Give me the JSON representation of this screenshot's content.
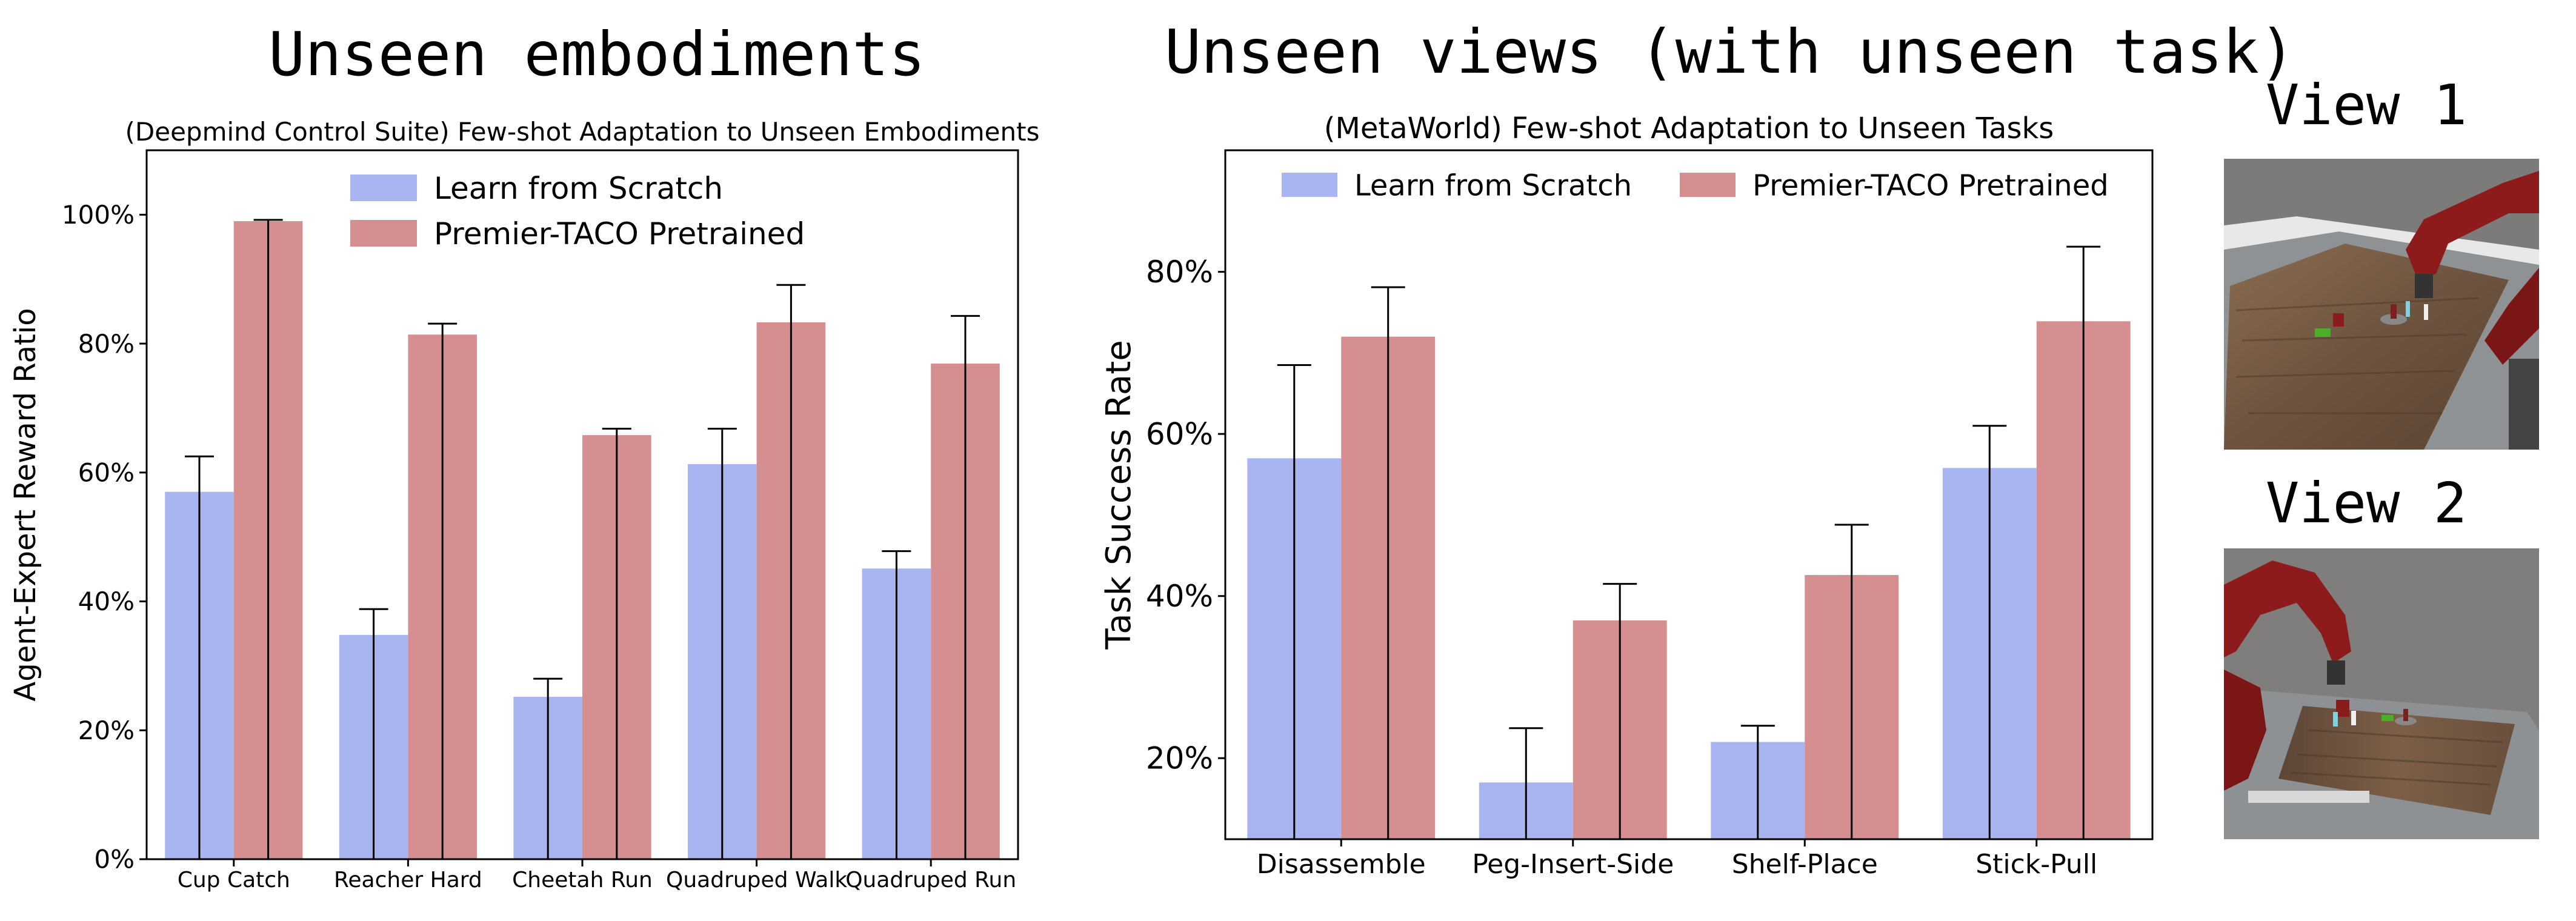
{
  "headings": {
    "left": "Unseen embodiments",
    "right": "Unseen views (with unseen task)"
  },
  "views": {
    "view1_label": "View 1",
    "view2_label": "View 2"
  },
  "colors": {
    "scratch": "#a9b5f0",
    "pretrained": "#d58f90",
    "error_bar": "#000000"
  },
  "chart_data": [
    {
      "type": "bar",
      "title": "(Deepmind Control Suite) Few-shot Adaptation to Unseen Embodiments",
      "xlabel": "",
      "ylabel": "Agent-Expert Reward Ratio",
      "categories": [
        "Cup Catch",
        "Reacher Hard",
        "Cheetah Run",
        "Quadruped Walk",
        "Quadruped Run"
      ],
      "series": [
        {
          "name": "Learn from Scratch",
          "values": [
            57,
            34.8,
            25.2,
            61.3,
            45.1
          ],
          "errors": [
            5.5,
            4,
            2.8,
            5.5,
            2.7
          ]
        },
        {
          "name": "Premier-TACO Pretrained",
          "values": [
            99,
            81.4,
            65.8,
            83.3,
            76.9
          ],
          "errors": [
            0.2,
            1.7,
            1,
            5.8,
            7.4
          ]
        }
      ],
      "ylim": [
        0,
        110
      ],
      "yticks": [
        0,
        20,
        40,
        60,
        80,
        100
      ],
      "ytick_labels": [
        "0%",
        "20%",
        "40%",
        "60%",
        "80%",
        "100%"
      ],
      "legend": "top-center",
      "grid": false
    },
    {
      "type": "bar",
      "title": "(MetaWorld) Few-shot Adaptation to Unseen Tasks",
      "xlabel": "",
      "ylabel": "Task Success Rate",
      "categories": [
        "Disassemble",
        "Peg-Insert-Side",
        "Shelf-Place",
        "Stick-Pull"
      ],
      "series": [
        {
          "name": "Learn from Scratch",
          "values": [
            57,
            17,
            22,
            55.8
          ],
          "errors": [
            11.5,
            6.7,
            2,
            5.2
          ]
        },
        {
          "name": "Premier-TACO Pretrained",
          "values": [
            72,
            37,
            42.6,
            73.9
          ],
          "errors": [
            6.1,
            4.5,
            6.2,
            9.2
          ]
        }
      ],
      "ylim": [
        10,
        95
      ],
      "yticks": [
        20,
        40,
        60,
        80
      ],
      "ytick_labels": [
        "20%",
        "40%",
        "60%",
        "80%"
      ],
      "legend": "top-center",
      "grid": false
    }
  ]
}
